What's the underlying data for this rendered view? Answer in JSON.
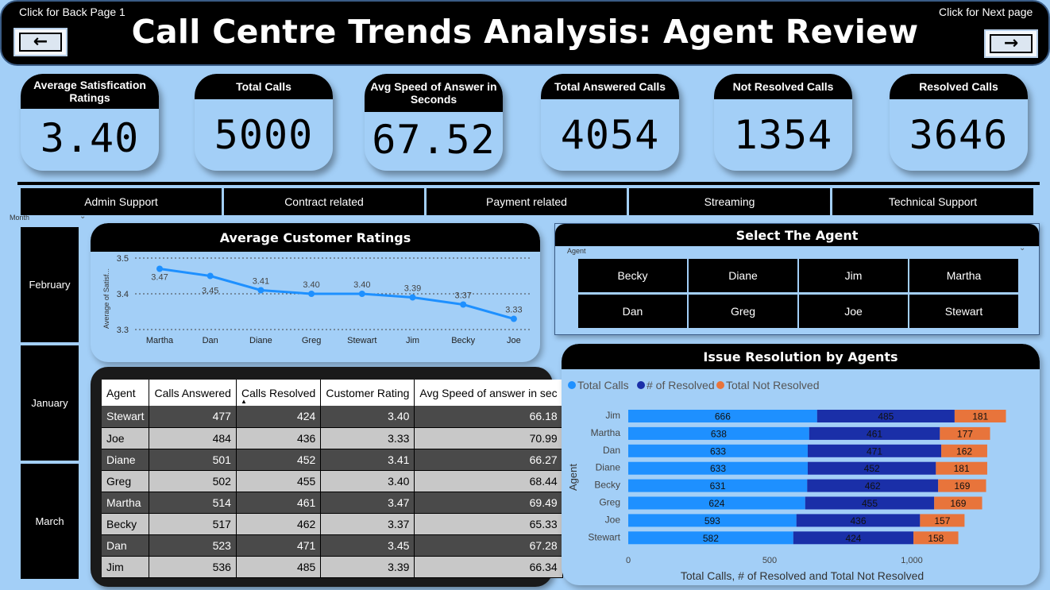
{
  "header": {
    "title": "Call Centre Trends Analysis: Agent Review",
    "back_label": "Click for Back Page 1",
    "next_label": "Click for Next page",
    "back_icon": "arrow-left-icon",
    "next_icon": "arrow-right-icon"
  },
  "kpis": [
    {
      "label": "Average Satisfication Ratings",
      "value": "3.40"
    },
    {
      "label": "Total Calls",
      "value": "5000"
    },
    {
      "label": "Avg Speed of Answer in Seconds",
      "value": "67.52"
    },
    {
      "label": "Total Answered Calls",
      "value": "4054"
    },
    {
      "label": "Not Resolved Calls",
      "value": "1354"
    },
    {
      "label": "Resolved Calls",
      "value": "3646"
    }
  ],
  "categories": [
    "Admin Support",
    "Contract related",
    "Payment related",
    "Streaming",
    "Technical Support"
  ],
  "month_slicer": {
    "label": "Month",
    "items": [
      "February",
      "January",
      "March"
    ]
  },
  "ratings_chart": {
    "title": "Average Customer Ratings",
    "ylabel": "Average of Satisf...",
    "yticks": [
      "3.5",
      "3.4",
      "3.3"
    ]
  },
  "agent_slicer": {
    "title": "Select The Agent",
    "label": "Agent",
    "items": [
      "Becky",
      "Diane",
      "Jim",
      "Martha",
      "Dan",
      "Greg",
      "Joe",
      "Stewart"
    ]
  },
  "table": {
    "headers": [
      "Agent",
      "Calls Answered",
      "Calls Resolved",
      "Customer Rating",
      "Avg Speed of answer in sec"
    ],
    "rows": [
      [
        "Stewart",
        "477",
        "424",
        "3.40",
        "66.18"
      ],
      [
        "Joe",
        "484",
        "436",
        "3.33",
        "70.99"
      ],
      [
        "Diane",
        "501",
        "452",
        "3.41",
        "66.27"
      ],
      [
        "Greg",
        "502",
        "455",
        "3.40",
        "68.44"
      ],
      [
        "Martha",
        "514",
        "461",
        "3.47",
        "69.49"
      ],
      [
        "Becky",
        "517",
        "462",
        "3.37",
        "65.33"
      ],
      [
        "Dan",
        "523",
        "471",
        "3.45",
        "67.28"
      ],
      [
        "Jim",
        "536",
        "485",
        "3.39",
        "66.34"
      ]
    ]
  },
  "bar_chart": {
    "title": "Issue Resolution by Agents",
    "xlabel": "Total Calls, # of Resolved and Total Not Resolved",
    "ylabel": "Agent",
    "xticks": [
      "0",
      "500",
      "1,000"
    ]
  },
  "chart_data": [
    {
      "type": "line",
      "title": "Average Customer Ratings",
      "ylabel": "Average of Satisf...",
      "categories": [
        "Martha",
        "Dan",
        "Diane",
        "Greg",
        "Stewart",
        "Jim",
        "Becky",
        "Joe"
      ],
      "values": [
        3.47,
        3.45,
        3.41,
        3.4,
        3.4,
        3.39,
        3.37,
        3.33
      ],
      "labels": [
        "3.47",
        "3.45",
        "3.41",
        "3.40",
        "3.40",
        "3.39",
        "3.37",
        "3.33"
      ],
      "ylim": [
        3.3,
        3.5
      ],
      "color": "#1e90ff",
      "grid": true
    },
    {
      "type": "bar",
      "orientation": "horizontal",
      "stacked": true,
      "title": "Issue Resolution by Agents",
      "xlabel": "Total Calls, # of Resolved and Total Not Resolved",
      "ylabel": "Agent",
      "categories": [
        "Jim",
        "Martha",
        "Dan",
        "Diane",
        "Becky",
        "Greg",
        "Joe",
        "Stewart"
      ],
      "series": [
        {
          "name": "Total Calls",
          "color": "#1e90ff",
          "values": [
            666,
            638,
            633,
            633,
            631,
            624,
            593,
            582
          ]
        },
        {
          "name": "# of Resolved",
          "color": "#1a2fa8",
          "values": [
            485,
            461,
            471,
            452,
            462,
            455,
            436,
            424
          ]
        },
        {
          "name": "Total Not Resolved",
          "color": "#e8743b",
          "values": [
            181,
            177,
            162,
            181,
            169,
            169,
            157,
            158
          ]
        }
      ],
      "xlim": [
        0,
        1350
      ],
      "legend": "top-left"
    }
  ]
}
